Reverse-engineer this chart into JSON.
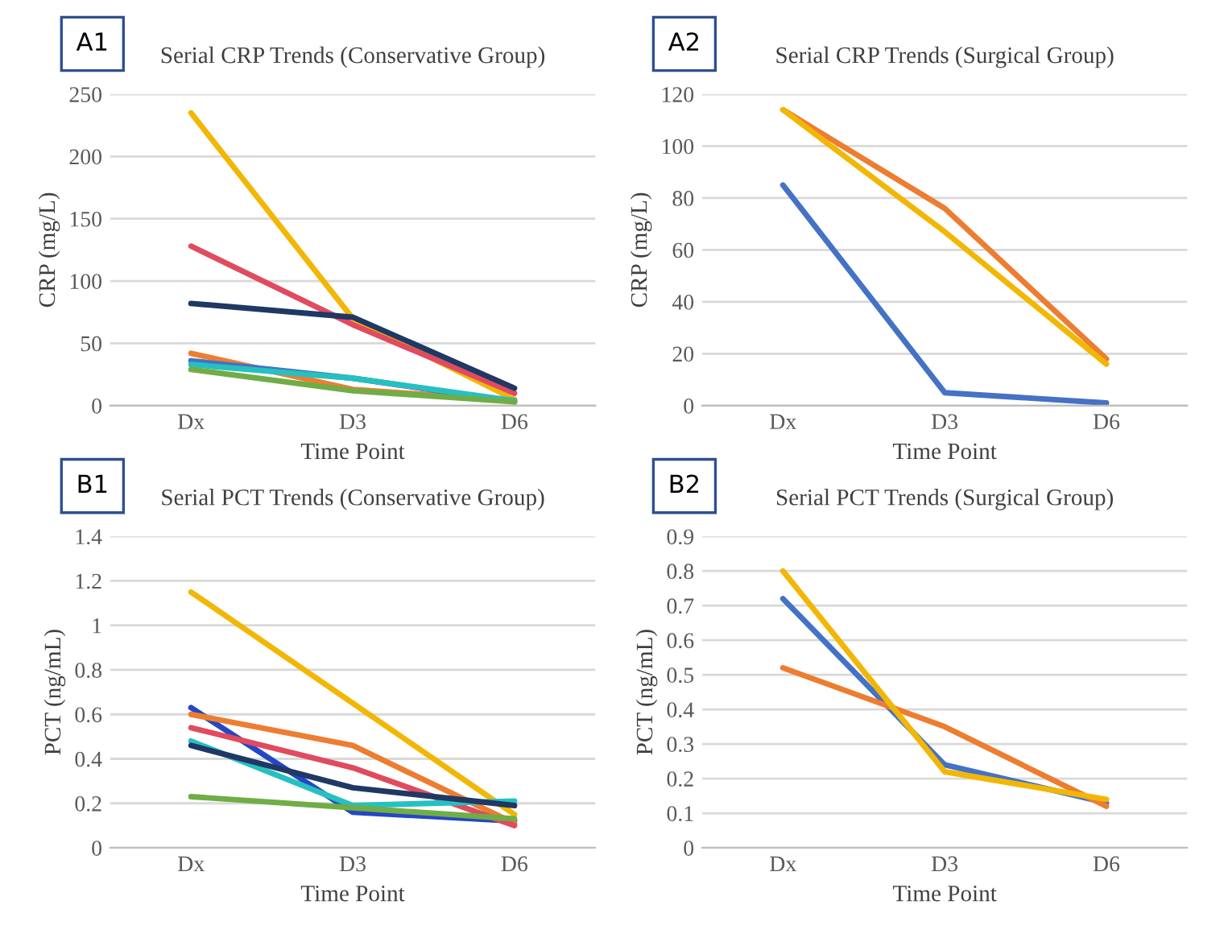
{
  "chart_data": [
    {
      "type": "line",
      "title": "Serial CRP Trends (Conservative Group)",
      "xlabel": "Time Point",
      "ylabel": "CRP (mg/L)",
      "annotations": [
        "A1"
      ],
      "categories": [
        "Dx",
        "D3",
        "D6"
      ],
      "ylim": [
        0,
        250
      ],
      "yticks": [
        0,
        50,
        100,
        150,
        200,
        250
      ],
      "grid": "y",
      "series": [
        {
          "color": "#f2b705",
          "values": [
            235,
            70,
            5
          ]
        },
        {
          "color": "#e04b5f",
          "values": [
            128,
            65,
            10
          ]
        },
        {
          "color": "#1f3864",
          "values": [
            82,
            71,
            14
          ]
        },
        {
          "color": "#ed7d31",
          "values": [
            42,
            13,
            4
          ]
        },
        {
          "color": "#4472c4",
          "values": [
            36,
            22,
            3
          ]
        },
        {
          "color": "#27c0c0",
          "values": [
            33,
            22,
            4
          ]
        },
        {
          "color": "#70ad47",
          "values": [
            29,
            12,
            3
          ]
        }
      ]
    },
    {
      "type": "line",
      "title": "Serial CRP Trends (Surgical Group)",
      "xlabel": "Time Point",
      "ylabel": "CRP (mg/L)",
      "annotations": [
        "A2"
      ],
      "categories": [
        "Dx",
        "D3",
        "D6"
      ],
      "ylim": [
        0,
        120
      ],
      "yticks": [
        0,
        20,
        40,
        60,
        80,
        100,
        120
      ],
      "grid": "y",
      "series": [
        {
          "color": "#ed7d31",
          "values": [
            114,
            76,
            18
          ]
        },
        {
          "color": "#f2b705",
          "values": [
            114,
            67,
            16
          ]
        },
        {
          "color": "#4472c4",
          "values": [
            85,
            5,
            1
          ]
        }
      ]
    },
    {
      "type": "line",
      "title": "Serial PCT Trends (Conservative Group)",
      "xlabel": "Time Point",
      "ylabel": "PCT (ng/mL)",
      "annotations": [
        "B1"
      ],
      "categories": [
        "Dx",
        "D3",
        "D6"
      ],
      "ylim": [
        0,
        1.4
      ],
      "yticks": [
        0,
        0.2,
        0.4,
        0.6,
        0.8,
        1,
        1.2,
        1.4
      ],
      "grid": "y",
      "series": [
        {
          "color": "#f2b705",
          "values": [
            1.15,
            0.65,
            0.15
          ]
        },
        {
          "color": "#2447c4",
          "values": [
            0.63,
            0.16,
            0.12
          ]
        },
        {
          "color": "#ed7d31",
          "values": [
            0.6,
            0.46,
            0.11
          ]
        },
        {
          "color": "#e04b5f",
          "values": [
            0.54,
            0.36,
            0.1
          ]
        },
        {
          "color": "#27c0c0",
          "values": [
            0.48,
            0.19,
            0.21
          ]
        },
        {
          "color": "#1f3864",
          "values": [
            0.46,
            0.27,
            0.19
          ]
        },
        {
          "color": "#70ad47",
          "values": [
            0.23,
            0.18,
            0.13
          ]
        }
      ]
    },
    {
      "type": "line",
      "title": "Serial PCT Trends (Surgical Group)",
      "xlabel": "Time Point",
      "ylabel": "PCT (ng/mL)",
      "annotations": [
        "B2"
      ],
      "categories": [
        "Dx",
        "D3",
        "D6"
      ],
      "ylim": [
        0,
        0.9
      ],
      "yticks": [
        0,
        0.1,
        0.2,
        0.3,
        0.4,
        0.5,
        0.6,
        0.7,
        0.8,
        0.9
      ],
      "grid": "y",
      "series": [
        {
          "color": "#4472c4",
          "values": [
            0.72,
            0.24,
            0.13
          ]
        },
        {
          "color": "#ed7d31",
          "values": [
            0.52,
            0.35,
            0.12
          ]
        },
        {
          "color": "#f2b705",
          "values": [
            0.8,
            0.22,
            0.14
          ]
        }
      ]
    }
  ]
}
